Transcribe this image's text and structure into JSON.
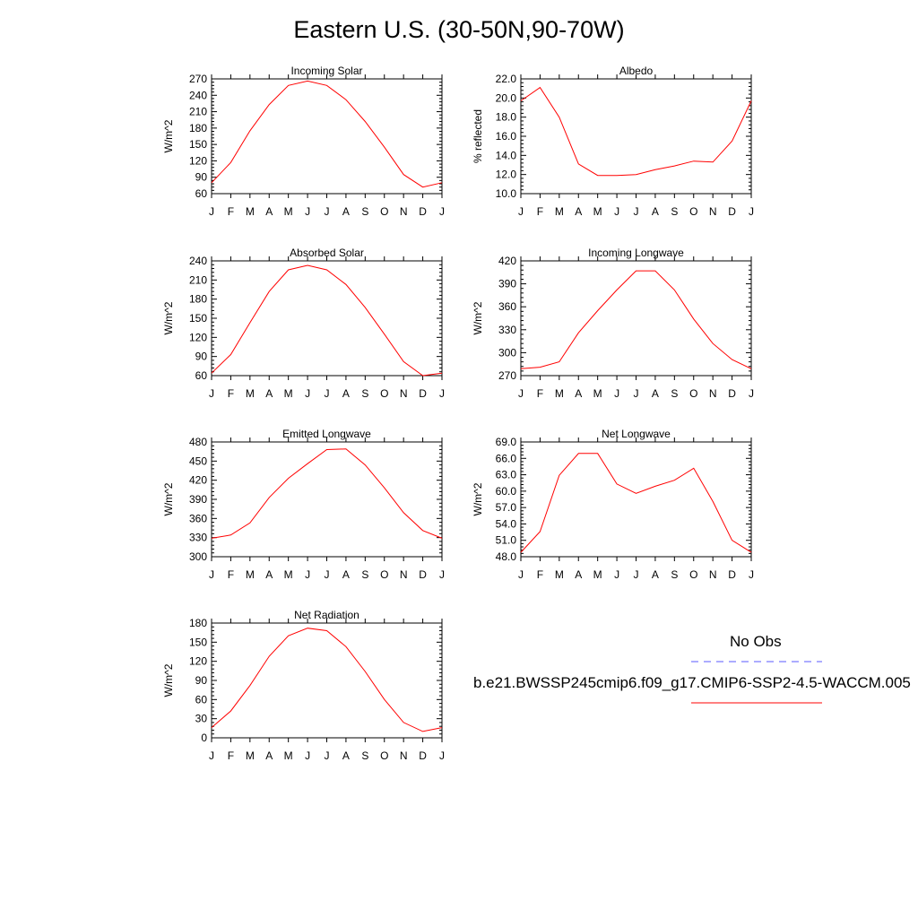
{
  "title": "Eastern U.S. (30-50N,90-70W)",
  "months": [
    "J",
    "F",
    "M",
    "A",
    "M",
    "J",
    "J",
    "A",
    "S",
    "O",
    "N",
    "D",
    "J"
  ],
  "legend": {
    "obs_label": "No Obs",
    "obs_color": "#5a5aff",
    "model_label": "b.e21.BWSSP245cmip6.f09_g17.CMIP6-SSP2-4.5-WACCM.005",
    "model_color": "#ff0000"
  },
  "chart_data": [
    {
      "type": "line",
      "title": "Incoming Solar",
      "ylabel": "W/m^2",
      "ylim": [
        60,
        270
      ],
      "yticks": [
        "60",
        "90",
        "120",
        "150",
        "180",
        "210",
        "240",
        "270"
      ],
      "series": [
        {
          "values": [
            80,
            117,
            175,
            223,
            258,
            266,
            258,
            232,
            192,
            145,
            95,
            72,
            80
          ]
        }
      ]
    },
    {
      "type": "line",
      "title": "Albedo",
      "ylabel": "% reflected",
      "ylim": [
        10,
        22
      ],
      "yticks": [
        "10.0",
        "12.0",
        "14.0",
        "16.0",
        "18.0",
        "20.0",
        "22.0"
      ],
      "series": [
        {
          "values": [
            19.7,
            21.1,
            18.0,
            13.1,
            11.9,
            11.9,
            12.0,
            12.5,
            12.9,
            13.4,
            13.3,
            15.5,
            19.7
          ]
        }
      ]
    },
    {
      "type": "line",
      "title": "Absorbed Solar",
      "ylabel": "W/m^2",
      "ylim": [
        60,
        240
      ],
      "yticks": [
        "60",
        "90",
        "120",
        "150",
        "180",
        "210",
        "240"
      ],
      "series": [
        {
          "values": [
            64,
            93,
            143,
            192,
            226,
            233,
            226,
            203,
            167,
            125,
            82,
            60,
            64
          ]
        }
      ]
    },
    {
      "type": "line",
      "title": "Incoming Longwave",
      "ylabel": "W/m^2",
      "ylim": [
        270,
        420
      ],
      "yticks": [
        "270",
        "300",
        "330",
        "360",
        "390",
        "420"
      ],
      "series": [
        {
          "values": [
            279,
            281,
            288,
            326,
            355,
            382,
            407,
            407,
            382,
            344,
            312,
            291,
            279
          ]
        }
      ]
    },
    {
      "type": "line",
      "title": "Emitted Longwave",
      "ylabel": "W/m^2",
      "ylim": [
        300,
        480
      ],
      "yticks": [
        "300",
        "330",
        "360",
        "390",
        "420",
        "450",
        "480"
      ],
      "series": [
        {
          "values": [
            329,
            334,
            353,
            393,
            423,
            446,
            468,
            469,
            444,
            408,
            369,
            341,
            329
          ]
        }
      ]
    },
    {
      "type": "line",
      "title": "Net Longwave",
      "ylabel": "W/m^2",
      "ylim": [
        48,
        69
      ],
      "yticks": [
        "48.0",
        "51.0",
        "54.0",
        "57.0",
        "60.0",
        "63.0",
        "66.0",
        "69.0"
      ],
      "series": [
        {
          "values": [
            48.8,
            52.6,
            62.9,
            66.9,
            66.9,
            61.3,
            59.6,
            60.9,
            62.0,
            64.2,
            58.1,
            51.0,
            48.8
          ]
        }
      ]
    },
    {
      "type": "line",
      "title": "Net Radiation",
      "ylabel": "W/m^2",
      "ylim": [
        0,
        180
      ],
      "yticks": [
        "0",
        "30",
        "60",
        "90",
        "120",
        "150",
        "180"
      ],
      "series": [
        {
          "values": [
            16,
            42,
            82,
            128,
            160,
            172,
            168,
            143,
            104,
            60,
            24,
            10,
            16
          ]
        }
      ]
    }
  ]
}
